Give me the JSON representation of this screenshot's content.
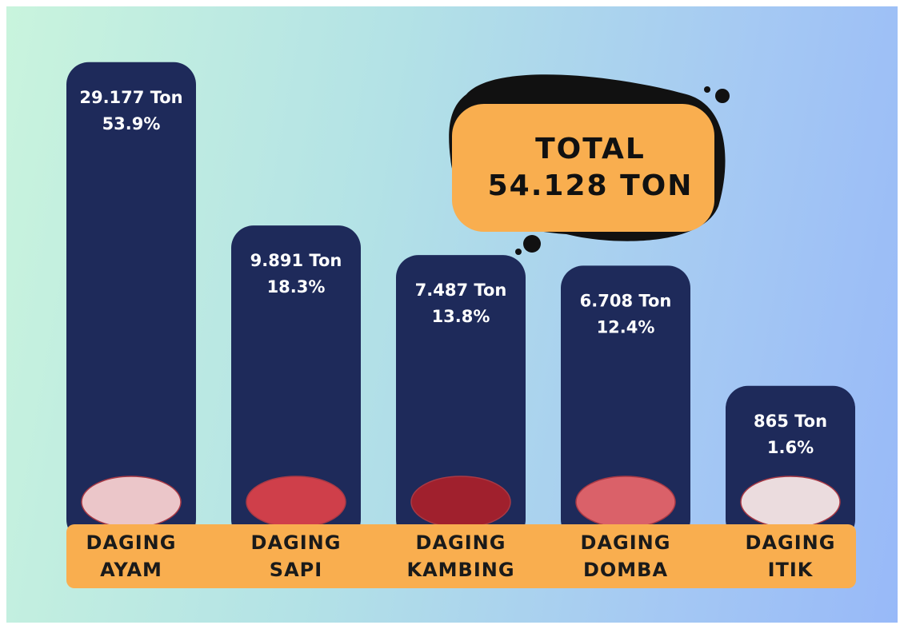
{
  "chart_data": {
    "type": "bar",
    "categories": [
      "DAGING AYAM",
      "DAGING SAPI",
      "DAGING KAMBING",
      "DAGING DOMBA",
      "DAGING ITIK"
    ],
    "values": [
      29177,
      9891,
      7487,
      6708,
      865
    ],
    "value_labels": [
      "29.177 Ton",
      "9.891 Ton",
      "7.487 Ton",
      "6.708 Ton",
      "865 Ton"
    ],
    "shares": [
      53.9,
      18.3,
      13.8,
      12.4,
      1.6
    ],
    "share_labels": [
      "53.9%",
      "18.3%",
      "13.8%",
      "12.4%",
      "1.6%"
    ],
    "color": "#1e2a5a",
    "total_title": "TOTAL",
    "total": 54128,
    "total_label": "54.128 TON"
  }
}
